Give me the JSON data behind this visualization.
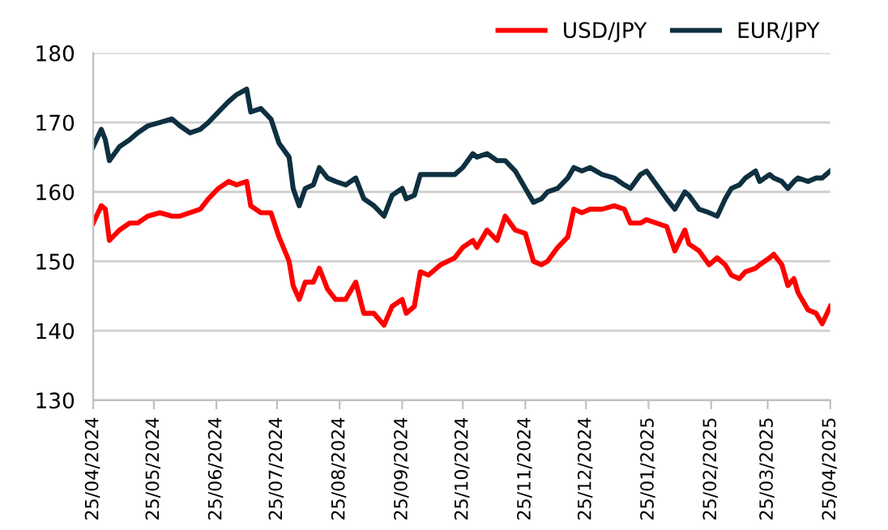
{
  "chart_data": {
    "type": "line",
    "legend": "top right",
    "grid": "y",
    "line_style": "solid",
    "marker": "none",
    "x": [
      "2024-04-25",
      "2024-04-29",
      "2024-05-01",
      "2024-05-03",
      "2024-05-08",
      "2024-05-13",
      "2024-05-17",
      "2024-05-22",
      "2024-05-28",
      "2024-06-03",
      "2024-06-07",
      "2024-06-12",
      "2024-06-17",
      "2024-06-21",
      "2024-06-26",
      "2024-07-01",
      "2024-07-05",
      "2024-07-10",
      "2024-07-12",
      "2024-07-17",
      "2024-07-22",
      "2024-07-26",
      "2024-07-31",
      "2024-08-02",
      "2024-08-05",
      "2024-08-08",
      "2024-08-12",
      "2024-08-15",
      "2024-08-19",
      "2024-08-23",
      "2024-08-28",
      "2024-09-02",
      "2024-09-06",
      "2024-09-11",
      "2024-09-16",
      "2024-09-20",
      "2024-09-25",
      "2024-09-27",
      "2024-10-01",
      "2024-10-04",
      "2024-10-08",
      "2024-10-14",
      "2024-10-21",
      "2024-10-25",
      "2024-10-30",
      "2024-11-01",
      "2024-11-06",
      "2024-11-11",
      "2024-11-15",
      "2024-11-20",
      "2024-11-25",
      "2024-11-29",
      "2024-12-03",
      "2024-12-06",
      "2024-12-11",
      "2024-12-16",
      "2024-12-19",
      "2024-12-23",
      "2024-12-27",
      "2025-01-02",
      "2025-01-08",
      "2025-01-13",
      "2025-01-16",
      "2025-01-21",
      "2025-01-24",
      "2025-01-29",
      "2025-02-03",
      "2025-02-07",
      "2025-02-12",
      "2025-02-14",
      "2025-02-19",
      "2025-02-24",
      "2025-02-28",
      "2025-03-04",
      "2025-03-07",
      "2025-03-11",
      "2025-03-14",
      "2025-03-19",
      "2025-03-21",
      "2025-03-26",
      "2025-03-28",
      "2025-04-01",
      "2025-04-04",
      "2025-04-07",
      "2025-04-09",
      "2025-04-14",
      "2025-04-18",
      "2025-04-21",
      "2025-04-25"
    ],
    "series": [
      {
        "name": "USD/JPY",
        "color": "#ff0000",
        "values": [
          155.5,
          158,
          157.5,
          153,
          154.5,
          155.5,
          155.5,
          156.5,
          157,
          156.5,
          156.5,
          157,
          157.5,
          159,
          160.5,
          161.5,
          161,
          161.5,
          158,
          157,
          157,
          153.5,
          150,
          146.5,
          144.5,
          147,
          147,
          149,
          146,
          144.5,
          144.5,
          147,
          142.5,
          142.5,
          140.8,
          143.5,
          144.5,
          142.5,
          143.5,
          148.5,
          148,
          149.5,
          150.5,
          152,
          153,
          152,
          154.5,
          153,
          156.5,
          154.5,
          154,
          150,
          149.5,
          150,
          152,
          153.5,
          157.5,
          157,
          157.5,
          157.5,
          158,
          157.5,
          155.5,
          155.5,
          156,
          155.5,
          155,
          151.5,
          154.5,
          152.5,
          151.5,
          149.5,
          150.5,
          149.5,
          148,
          147.5,
          148.5,
          149,
          149.5,
          150.5,
          151,
          149.5,
          146.5,
          147.5,
          145.5,
          143,
          142.5,
          141,
          143.5
        ]
      },
      {
        "name": "EUR/JPY",
        "color": "#0e3040",
        "values": [
          166.5,
          169,
          167.5,
          164.5,
          166.5,
          167.5,
          168.5,
          169.5,
          170,
          170.5,
          169.5,
          168.5,
          169,
          170,
          171.5,
          173,
          174,
          174.8,
          171.5,
          172,
          170.5,
          167,
          165,
          160.5,
          158,
          160.5,
          161,
          163.5,
          162,
          161.5,
          161,
          162,
          159,
          158,
          156.5,
          159.5,
          160.5,
          159,
          159.5,
          162.5,
          162.5,
          162.5,
          162.5,
          163.5,
          165.5,
          165,
          165.5,
          164.5,
          164.5,
          163,
          160.5,
          158.5,
          159,
          160,
          160.5,
          162,
          163.5,
          163,
          163.5,
          162.5,
          162,
          161,
          160.5,
          162.5,
          163,
          161,
          159,
          157.5,
          160,
          159.5,
          157.5,
          157,
          156.5,
          159,
          160.5,
          161,
          162,
          163,
          161.5,
          162.5,
          162,
          161.5,
          160.5,
          161.5,
          162,
          161.5,
          162,
          162,
          163
        ]
      }
    ],
    "ylim": [
      130,
      180
    ],
    "yticks": [
      130,
      140,
      150,
      160,
      170,
      180
    ],
    "xlim": [
      "2024-04-25",
      "2025-04-25"
    ],
    "xticks": [
      {
        "value": "2024-04-25",
        "label": "25/04/2024"
      },
      {
        "value": "2024-05-25",
        "label": "25/05/2024"
      },
      {
        "value": "2024-06-25",
        "label": "25/06/2024"
      },
      {
        "value": "2024-07-25",
        "label": "25/07/2024"
      },
      {
        "value": "2024-08-25",
        "label": "25/08/2024"
      },
      {
        "value": "2024-09-25",
        "label": "25/09/2024"
      },
      {
        "value": "2024-10-25",
        "label": "25/10/2024"
      },
      {
        "value": "2024-11-25",
        "label": "25/11/2024"
      },
      {
        "value": "2024-12-25",
        "label": "25/12/2024"
      },
      {
        "value": "2025-01-25",
        "label": "25/01/2025"
      },
      {
        "value": "2025-02-25",
        "label": "25/02/2025"
      },
      {
        "value": "2025-03-25",
        "label": "25/03/2025"
      },
      {
        "value": "2025-04-25",
        "label": "25/04/2025"
      }
    ]
  }
}
